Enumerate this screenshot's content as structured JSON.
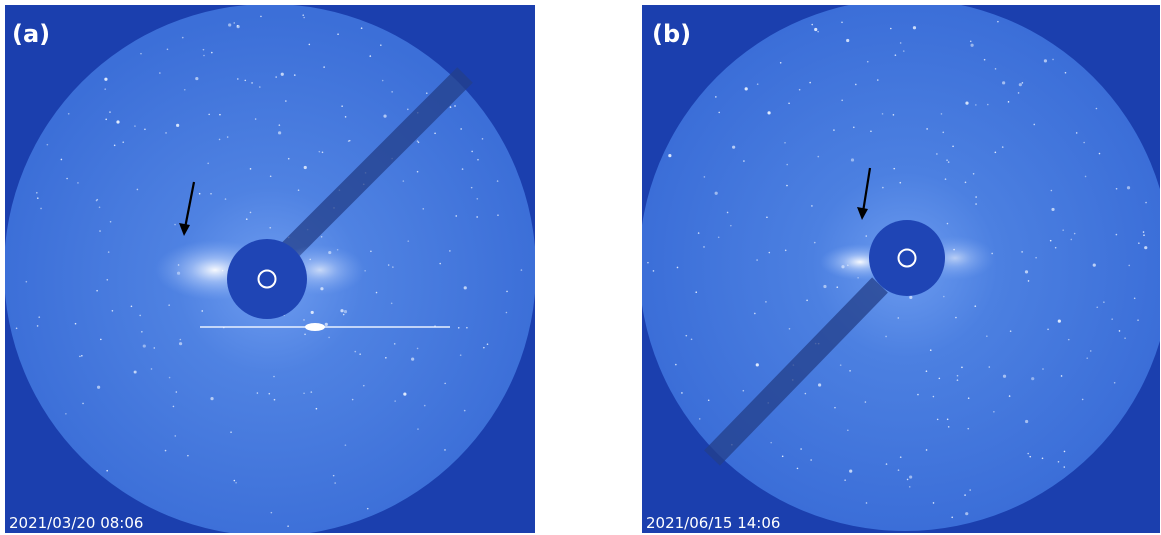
{
  "panels": [
    {
      "label": "(a)",
      "timestamp": "2021/03/20 08:06"
    },
    {
      "label": "(b)",
      "timestamp": "2021/06/15 14:06"
    }
  ]
}
